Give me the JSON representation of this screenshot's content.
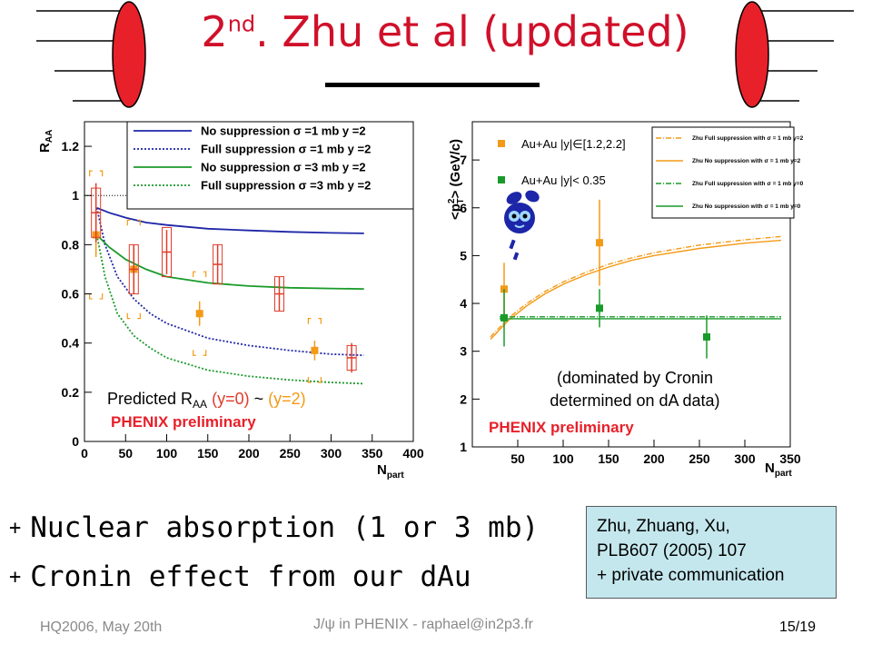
{
  "slide": {
    "title_main": "2",
    "title_sup": "nd",
    "title_rest": ". Zhu et al (updated)",
    "bullets": [
      "Nuclear absorption (1 or 3 mb)",
      "Cronin effect from our dAu"
    ],
    "bullet_marker": "+",
    "reference": [
      "Zhu, Zhuang, Xu,",
      "PLB607 (2005) 107",
      "+ private communication"
    ],
    "footer_left": "HQ2006, May 20th",
    "footer_center": "J/ψ in PHENIX - raphael@in2p3.fr",
    "footer_right": "15/19"
  },
  "colors": {
    "title": "#d0102a",
    "deco_ellipse": "#e8202a",
    "ref_box": "#c4e7ed",
    "orange": "#f39a16",
    "green": "#1a9a2a",
    "red_box": "#e03c2a",
    "blue": "#1d26a8"
  },
  "chart_data": [
    {
      "type": "line",
      "ylabel_base": "R",
      "ylabel_sub": "AA",
      "xlabel_base": "N",
      "xlabel_sub": "part",
      "xlim": [
        0,
        400
      ],
      "ylim": [
        0,
        1.3
      ],
      "xticks": [
        "0",
        "50",
        "100",
        "150",
        "200",
        "250",
        "300",
        "350",
        "400"
      ],
      "yticks": [
        "0",
        "0.2",
        "0.4",
        "0.6",
        "0.8",
        "1",
        "1.2"
      ],
      "xtick_values": [
        0,
        50,
        100,
        150,
        200,
        250,
        300,
        350,
        400
      ],
      "ytick_values": [
        0,
        0.2,
        0.4,
        0.6,
        0.8,
        1.0,
        1.2
      ],
      "reference_line": 1.0,
      "legend": {
        "placement": "top-right"
      },
      "series": [
        {
          "name": "No suppression σ =1 mb y =2",
          "color": "#1d26a8",
          "dash": "solid",
          "x": [
            15,
            30,
            50,
            75,
            100,
            150,
            200,
            250,
            300,
            340
          ],
          "y": [
            0.95,
            0.93,
            0.91,
            0.89,
            0.88,
            0.865,
            0.858,
            0.852,
            0.848,
            0.846
          ]
        },
        {
          "name": "Full suppression σ =1 mb y =2",
          "color": "#1d26a8",
          "dash": "dotted",
          "x": [
            15,
            25,
            40,
            60,
            80,
            100,
            150,
            200,
            250,
            300,
            340
          ],
          "y": [
            0.95,
            0.8,
            0.67,
            0.58,
            0.52,
            0.48,
            0.42,
            0.39,
            0.37,
            0.355,
            0.35
          ]
        },
        {
          "name": "No suppression σ =3 mb y =2",
          "color": "#1a9a2a",
          "dash": "solid",
          "x": [
            15,
            30,
            50,
            75,
            100,
            150,
            200,
            250,
            300,
            340
          ],
          "y": [
            0.84,
            0.79,
            0.74,
            0.7,
            0.67,
            0.645,
            0.632,
            0.625,
            0.622,
            0.62
          ]
        },
        {
          "name": "Full suppression σ =3 mb y =2",
          "color": "#1a9a2a",
          "dash": "dotted",
          "x": [
            15,
            25,
            40,
            60,
            80,
            100,
            150,
            200,
            250,
            300,
            340
          ],
          "y": [
            0.84,
            0.67,
            0.52,
            0.43,
            0.38,
            0.34,
            0.29,
            0.265,
            0.25,
            0.24,
            0.235
          ]
        }
      ],
      "data_series": [
        {
          "label": "|y|∈[1.2,2.2]",
          "color": "#f39a16",
          "marker": "square",
          "x": [
            14,
            60,
            140,
            280
          ],
          "y": [
            0.84,
            0.7,
            0.52,
            0.37
          ],
          "err": [
            0.09,
            0.08,
            0.05,
            0.04
          ],
          "sys": [
            0.26,
            0.2,
            0.17,
            0.13
          ]
        },
        {
          "label": "|y|<0.35",
          "color": "#e03c2a",
          "marker": "open-box",
          "x": [
            14,
            60,
            100,
            162,
            237,
            325
          ],
          "y": [
            0.93,
            0.7,
            0.77,
            0.72,
            0.6,
            0.34
          ],
          "err": [
            0.12,
            0.1,
            0.09,
            0.08,
            0.07,
            0.06
          ],
          "sys": [
            0.1,
            0.1,
            0.1,
            0.08,
            0.07,
            0.05
          ]
        }
      ],
      "annotations": {
        "predicted_prefix": "Predicted R",
        "predicted_sub": "AA",
        "predicted_y0": "(y=0)",
        "predicted_tilde": "~",
        "predicted_y2": "(y=2)",
        "preliminary": "PHENIX preliminary"
      }
    },
    {
      "type": "line",
      "ylabel": "<p²_T> (GeV/c)",
      "ylabel_main": "<p",
      "ylabel_sup": "2",
      "ylabel_sub": "T",
      "ylabel_rest": "> (GeV/c)",
      "xlabel_base": "N",
      "xlabel_sub": "part",
      "xlim": [
        0,
        350
      ],
      "ylim": [
        1,
        7.8
      ],
      "xticks": [
        "50",
        "100",
        "150",
        "200",
        "250",
        "300",
        "350"
      ],
      "yticks": [
        "1",
        "2",
        "3",
        "4",
        "5",
        "6",
        "7"
      ],
      "xtick_values": [
        50,
        100,
        150,
        200,
        250,
        300,
        350
      ],
      "ytick_values": [
        1,
        2,
        3,
        4,
        5,
        6,
        7
      ],
      "legend": {
        "placement": "top-right"
      },
      "data_legend": {
        "placement": "top-left"
      },
      "series": [
        {
          "name": "Zhu Full suppression with σ = 1 mb y=2",
          "color": "#f39a16",
          "dash": "dashdot",
          "x": [
            20,
            40,
            60,
            80,
            100,
            125,
            150,
            175,
            200,
            250,
            300,
            340
          ],
          "y": [
            3.3,
            3.7,
            4.0,
            4.25,
            4.45,
            4.65,
            4.82,
            4.95,
            5.06,
            5.22,
            5.33,
            5.4
          ]
        },
        {
          "name": "Zhu No suppression with σ = 1 mb y=2",
          "color": "#f39a16",
          "dash": "solid",
          "x": [
            20,
            40,
            60,
            80,
            100,
            125,
            150,
            175,
            200,
            250,
            300,
            340
          ],
          "y": [
            3.25,
            3.65,
            3.95,
            4.2,
            4.4,
            4.6,
            4.76,
            4.9,
            5.0,
            5.15,
            5.26,
            5.32
          ]
        },
        {
          "name": "Zhu Full suppression with σ = 1 mb y=0",
          "color": "#1a9a2a",
          "dash": "dashdot",
          "x": [
            30,
            60,
            100,
            200,
            340
          ],
          "y": [
            3.72,
            3.72,
            3.72,
            3.72,
            3.72
          ]
        },
        {
          "name": "Zhu No suppression with σ = 1 mb y=0",
          "color": "#1a9a2a",
          "dash": "solid",
          "x": [
            30,
            60,
            100,
            200,
            340
          ],
          "y": [
            3.68,
            3.68,
            3.68,
            3.68,
            3.68
          ]
        }
      ],
      "data_series": [
        {
          "name": "Au+Au |y|∈[1.2,2.2]",
          "color": "#f39a16",
          "marker": "square",
          "x": [
            35,
            140
          ],
          "y": [
            4.3,
            5.27
          ],
          "err": [
            0.55,
            0.9
          ]
        },
        {
          "name": "Au+Au |y|< 0.35",
          "color": "#1a9a2a",
          "marker": "square",
          "x": [
            35,
            140,
            258
          ],
          "y": [
            3.7,
            3.9,
            3.3
          ],
          "err": [
            0.6,
            0.4,
            0.45
          ]
        }
      ],
      "annotations": {
        "cronin_line1": "(dominated by Cronin",
        "cronin_line2": "determined on dA data)",
        "preliminary": "PHENIX preliminary"
      }
    }
  ]
}
